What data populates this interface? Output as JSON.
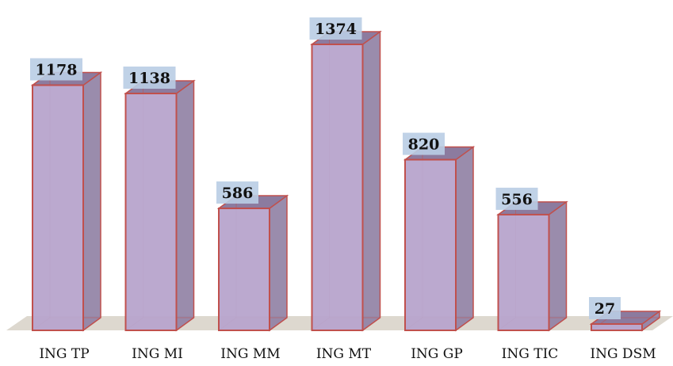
{
  "chart_data": {
    "type": "bar",
    "categories": [
      "ING TP",
      "ING MI",
      "ING MM",
      "ING MT",
      "ING GP",
      "ING TIC",
      "ING DSM"
    ],
    "values": [
      1178,
      1138,
      586,
      1374,
      820,
      556,
      27
    ],
    "title": "",
    "xlabel": "",
    "ylabel": "",
    "ylim": [
      0,
      1374
    ],
    "grid": false,
    "legend": "none",
    "style": "3d-column",
    "colors": {
      "bar_front": "#b7a4cc",
      "bar_side": "#8f7fa3",
      "bar_top": "#8c7b9f",
      "bar_edge": "#c0504d",
      "floor": "#ddd8cf",
      "label_box": "#b9cde4"
    }
  }
}
